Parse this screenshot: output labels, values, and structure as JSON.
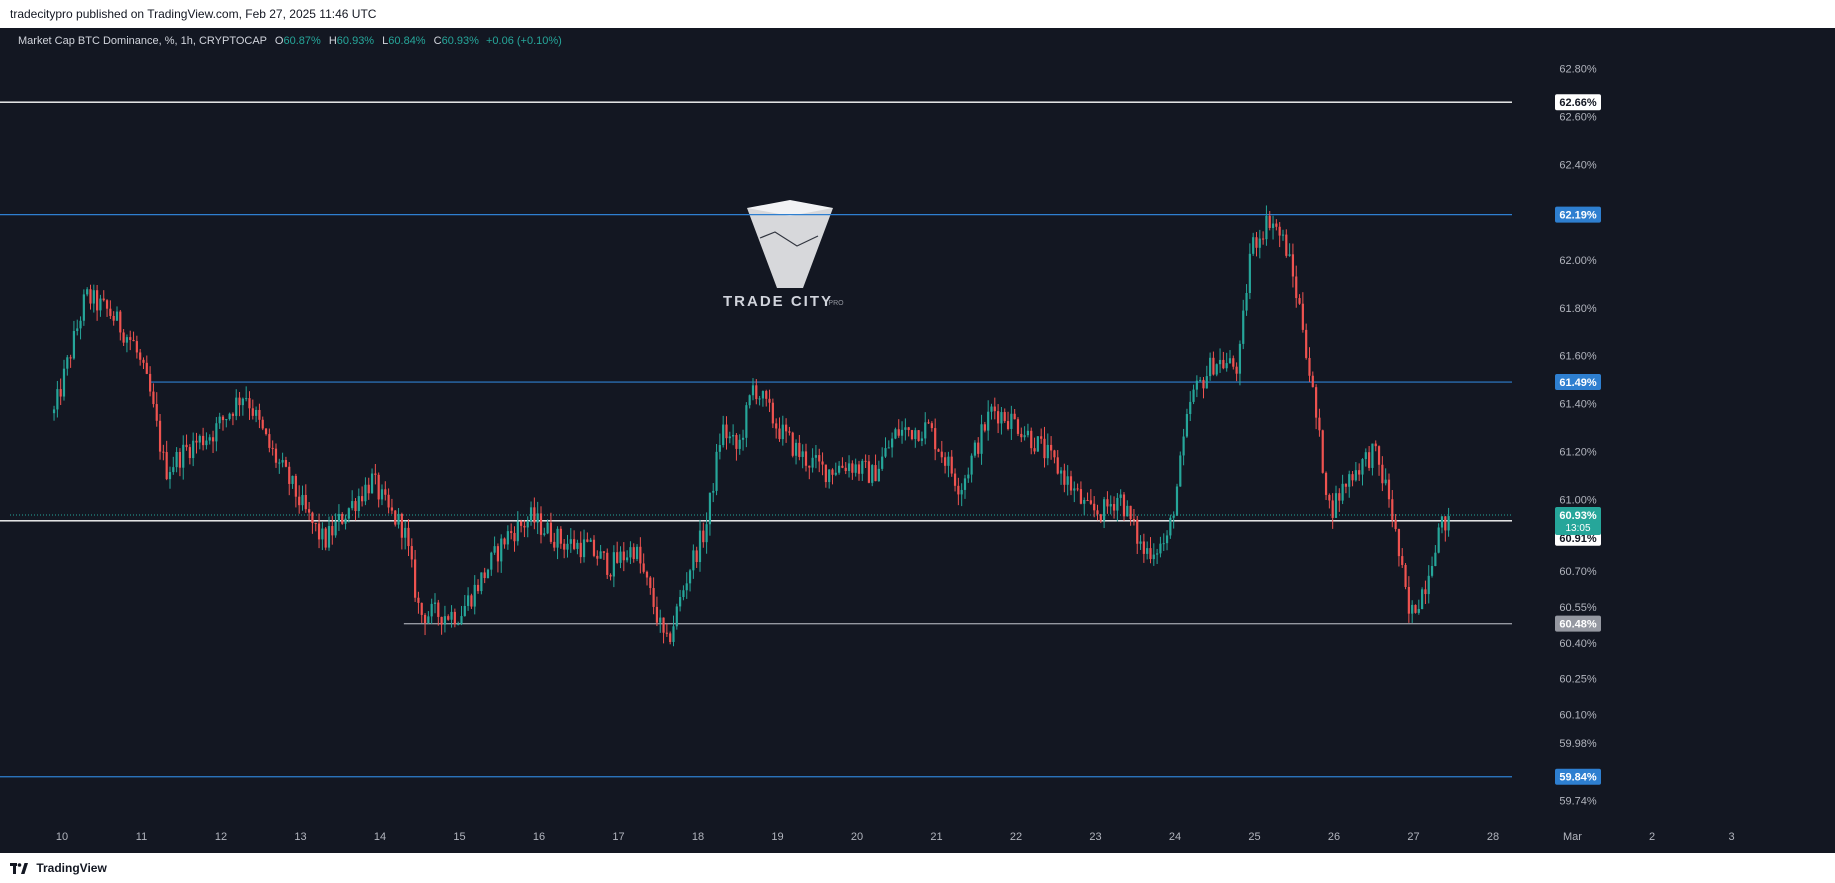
{
  "header": {
    "published_by": "tradecitypro published on TradingView.com, Feb 27, 2025 11:46 UTC"
  },
  "legend": {
    "symbol": "Market Cap BTC Dominance, %, 1h, CRYPTOCAP",
    "open_label": "O",
    "open": "60.87%",
    "high_label": "H",
    "high": "60.93%",
    "low_label": "L",
    "low": "60.84%",
    "close_label": "C",
    "close": "60.93%",
    "change": "+0.06 (+0.10%)"
  },
  "watermark": {
    "brand": "TRADE CITY",
    "suffix": "PRO"
  },
  "footer": {
    "brand": "TradingView"
  },
  "colors": {
    "background": "#131722",
    "up": "#26a69a",
    "down": "#ef5350",
    "blue_level": "#2e7fd0",
    "white_level": "#ffffff",
    "grey_level": "#9598a1"
  },
  "chart_data": {
    "type": "candlestick",
    "timeframe": "1h",
    "ylim": [
      59.68,
      62.92
    ],
    "y_ticks": [
      {
        "v": 62.8,
        "label": "62.80%"
      },
      {
        "v": 62.6,
        "label": "62.60%"
      },
      {
        "v": 62.4,
        "label": "62.40%"
      },
      {
        "v": 62.0,
        "label": "62.00%"
      },
      {
        "v": 61.8,
        "label": "61.80%"
      },
      {
        "v": 61.6,
        "label": "61.60%"
      },
      {
        "v": 61.4,
        "label": "61.40%"
      },
      {
        "v": 61.2,
        "label": "61.20%"
      },
      {
        "v": 61.0,
        "label": "61.00%"
      },
      {
        "v": 60.7,
        "label": "60.70%"
      },
      {
        "v": 60.55,
        "label": "60.55%"
      },
      {
        "v": 60.4,
        "label": "60.40%"
      },
      {
        "v": 60.25,
        "label": "60.25%"
      },
      {
        "v": 60.1,
        "label": "60.10%"
      },
      {
        "v": 59.98,
        "label": "59.98%"
      },
      {
        "v": 59.74,
        "label": "59.74%"
      }
    ],
    "x_ticks": [
      {
        "day": 10,
        "label": "10"
      },
      {
        "day": 11,
        "label": "11"
      },
      {
        "day": 12,
        "label": "12"
      },
      {
        "day": 13,
        "label": "13"
      },
      {
        "day": 14,
        "label": "14"
      },
      {
        "day": 15,
        "label": "15"
      },
      {
        "day": 16,
        "label": "16"
      },
      {
        "day": 17,
        "label": "17"
      },
      {
        "day": 18,
        "label": "18"
      },
      {
        "day": 19,
        "label": "19"
      },
      {
        "day": 20,
        "label": "20"
      },
      {
        "day": 21,
        "label": "21"
      },
      {
        "day": 22,
        "label": "22"
      },
      {
        "day": 23,
        "label": "23"
      },
      {
        "day": 24,
        "label": "24"
      },
      {
        "day": 25,
        "label": "25"
      },
      {
        "day": 26,
        "label": "26"
      },
      {
        "day": 27,
        "label": "27"
      },
      {
        "day": 28,
        "label": "28"
      },
      {
        "day": 29,
        "label": "Mar"
      },
      {
        "day": 30,
        "label": "2"
      },
      {
        "day": 31,
        "label": "3"
      }
    ],
    "levels": [
      {
        "value": 62.66,
        "label": "62.66%",
        "style": "white",
        "from_day": 9.2
      },
      {
        "value": 62.19,
        "label": "62.19%",
        "style": "blue",
        "from_day": 9.2
      },
      {
        "value": 61.49,
        "label": "61.49%",
        "style": "blue",
        "from_day": 11.1
      },
      {
        "value": 60.91,
        "label": "60.91%",
        "style": "white",
        "from_day": 9.2
      },
      {
        "value": 60.48,
        "label": "60.48%",
        "style": "grey",
        "from_day": 14.3
      },
      {
        "value": 59.84,
        "label": "59.84%",
        "style": "blue",
        "from_day": 9.2
      }
    ],
    "last_price": {
      "value": 60.93,
      "label": "60.93%",
      "countdown": "13:05"
    },
    "path": [
      [
        9.9,
        61.36
      ],
      [
        10.3,
        61.85
      ],
      [
        10.6,
        61.78
      ],
      [
        10.9,
        61.65
      ],
      [
        11.1,
        61.45
      ],
      [
        11.3,
        61.12
      ],
      [
        11.6,
        61.22
      ],
      [
        11.9,
        61.28
      ],
      [
        12.3,
        61.45
      ],
      [
        12.6,
        61.22
      ],
      [
        12.9,
        61.05
      ],
      [
        13.1,
        60.92
      ],
      [
        13.3,
        60.82
      ],
      [
        13.6,
        60.96
      ],
      [
        13.9,
        61.08
      ],
      [
        14.1,
        60.95
      ],
      [
        14.3,
        60.88
      ],
      [
        14.5,
        60.52
      ],
      [
        14.8,
        60.52
      ],
      [
        15.0,
        60.52
      ],
      [
        15.3,
        60.68
      ],
      [
        15.6,
        60.85
      ],
      [
        15.9,
        60.92
      ],
      [
        16.3,
        60.82
      ],
      [
        16.6,
        60.8
      ],
      [
        16.9,
        60.72
      ],
      [
        17.2,
        60.8
      ],
      [
        17.45,
        60.55
      ],
      [
        17.6,
        60.38
      ],
      [
        17.9,
        60.72
      ],
      [
        18.1,
        60.88
      ],
      [
        18.3,
        61.3
      ],
      [
        18.5,
        61.2
      ],
      [
        18.7,
        61.48
      ],
      [
        19.0,
        61.3
      ],
      [
        19.3,
        61.18
      ],
      [
        19.6,
        61.12
      ],
      [
        19.9,
        61.15
      ],
      [
        20.2,
        61.1
      ],
      [
        20.5,
        61.28
      ],
      [
        20.9,
        61.3
      ],
      [
        21.3,
        61.05
      ],
      [
        21.7,
        61.38
      ],
      [
        22.0,
        61.32
      ],
      [
        22.3,
        61.22
      ],
      [
        22.6,
        61.1
      ],
      [
        22.9,
        60.95
      ],
      [
        23.1,
        60.95
      ],
      [
        23.3,
        61.02
      ],
      [
        23.6,
        60.78
      ],
      [
        23.9,
        60.82
      ],
      [
        24.0,
        61.0
      ],
      [
        24.2,
        61.42
      ],
      [
        24.5,
        61.58
      ],
      [
        24.8,
        61.55
      ],
      [
        24.95,
        62.05
      ],
      [
        25.2,
        62.18
      ],
      [
        25.4,
        62.05
      ],
      [
        25.6,
        61.75
      ],
      [
        25.8,
        61.28
      ],
      [
        25.95,
        60.95
      ],
      [
        26.2,
        61.1
      ],
      [
        26.5,
        61.2
      ],
      [
        26.7,
        61.0
      ],
      [
        26.85,
        60.7
      ],
      [
        26.95,
        60.5
      ],
      [
        27.15,
        60.65
      ],
      [
        27.3,
        60.86
      ],
      [
        27.47,
        60.93
      ]
    ]
  }
}
